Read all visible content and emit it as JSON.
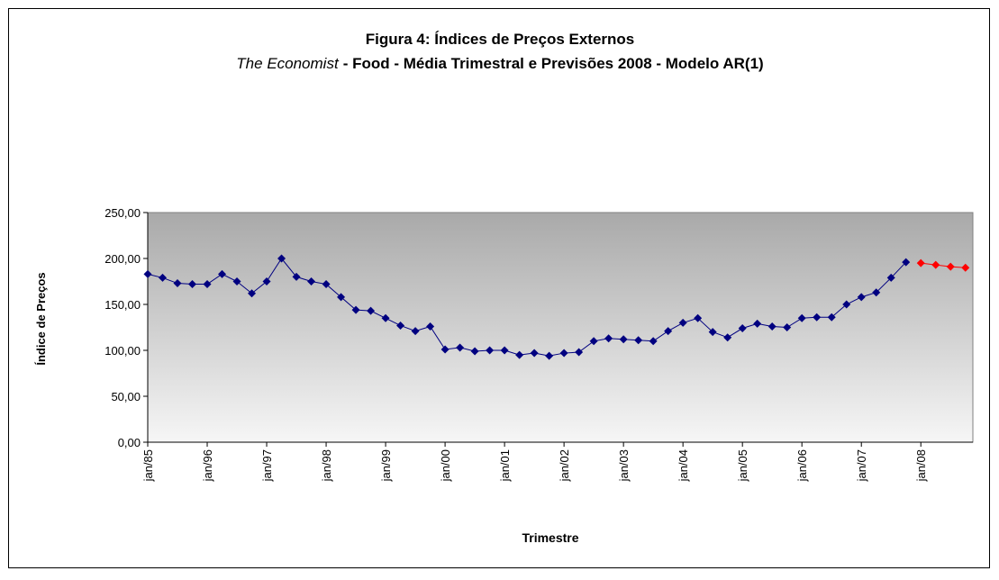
{
  "chart_data": {
    "type": "line",
    "title": "Figura 4: Índices de Preços Externos",
    "subtitle": [
      "The Economist",
      "- Food - Média Trimestral e Previsões 2008 - Modelo AR(1)"
    ],
    "x_label": "Trimestre",
    "y_label": "Índice de Preços",
    "categories": [
      "jan/85",
      null,
      null,
      null,
      "jan/96",
      null,
      null,
      null,
      "jan/97",
      null,
      null,
      null,
      "jan/98",
      null,
      null,
      null,
      "jan/99",
      null,
      null,
      null,
      "jan/00",
      null,
      null,
      null,
      "jan/01",
      null,
      null,
      null,
      "jan/02",
      null,
      null,
      null,
      "jan/03",
      null,
      null,
      null,
      "jan/04",
      null,
      null,
      null,
      "jan/05",
      null,
      null,
      null,
      "jan/06",
      null,
      null,
      null,
      "jan/07",
      null,
      null,
      null,
      "jan/08",
      null,
      null,
      null
    ],
    "series": [
      {
        "color": "#000080",
        "values": [
          183,
          179,
          173,
          172,
          172,
          183,
          175,
          162,
          175,
          200,
          180,
          175,
          172,
          158,
          144,
          143,
          135,
          127,
          121,
          126,
          101,
          103,
          99,
          100,
          100,
          95,
          97,
          94,
          97,
          98,
          110,
          113,
          112,
          111,
          110,
          121,
          130,
          135,
          120,
          114,
          124,
          129,
          126,
          125,
          135,
          136,
          136,
          150,
          158,
          163,
          179,
          196,
          null,
          null,
          null,
          null
        ]
      },
      {
        "color": "#ff0000",
        "values": [
          null,
          null,
          null,
          null,
          null,
          null,
          null,
          null,
          null,
          null,
          null,
          null,
          null,
          null,
          null,
          null,
          null,
          null,
          null,
          null,
          null,
          null,
          null,
          null,
          null,
          null,
          null,
          null,
          null,
          null,
          null,
          null,
          null,
          null,
          null,
          null,
          null,
          null,
          null,
          null,
          null,
          null,
          null,
          null,
          null,
          null,
          null,
          null,
          null,
          null,
          null,
          null,
          195,
          193,
          191,
          190
        ]
      }
    ],
    "ylim": [
      0,
      250
    ],
    "yticks": [
      {
        "value": 0,
        "label": "0,00"
      },
      {
        "value": 50,
        "label": "50,00"
      },
      {
        "value": 100,
        "label": "100,00"
      },
      {
        "value": 150,
        "label": "150,00"
      },
      {
        "value": 200,
        "label": "200,00"
      },
      {
        "value": 250,
        "label": "250,00"
      }
    ]
  }
}
